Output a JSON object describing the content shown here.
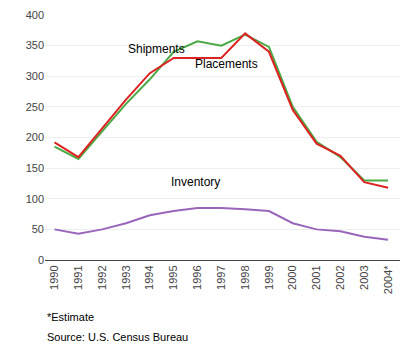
{
  "chart_data": {
    "type": "line",
    "x": [
      1990,
      1991,
      1992,
      1993,
      1994,
      1995,
      1996,
      1997,
      1998,
      1999,
      2000,
      2001,
      2002,
      2003,
      2004
    ],
    "series": [
      {
        "name": "Shipments",
        "color": "#4aaa44",
        "values": [
          185,
          165,
          210,
          255,
          295,
          340,
          357,
          350,
          368,
          348,
          250,
          193,
          168,
          130,
          130
        ]
      },
      {
        "name": "Placements",
        "color": "#dd2222",
        "values": [
          192,
          168,
          215,
          262,
          305,
          330,
          330,
          330,
          370,
          340,
          245,
          190,
          170,
          127,
          118
        ]
      },
      {
        "name": "Inventory",
        "color": "#9966bb",
        "values": [
          50,
          43,
          50,
          60,
          73,
          80,
          85,
          85,
          83,
          80,
          60,
          50,
          47,
          38,
          33
        ]
      }
    ],
    "xlim": [
      1989.6,
      2004.5
    ],
    "xticks": [
      1990,
      1991,
      1992,
      1993,
      1994,
      1995,
      1996,
      1997,
      1998,
      1999,
      2000,
      2001,
      2002,
      2003,
      {
        "value": 2004,
        "label": "2004*"
      }
    ],
    "ylim": [
      0,
      400
    ],
    "yticks": [
      0,
      50,
      100,
      150,
      200,
      250,
      300,
      350,
      400
    ],
    "grid": true,
    "annotations": [
      {
        "text": "Shipments",
        "x": 1993.0,
        "y": 330
      },
      {
        "text": "Placements",
        "x": 1995.8,
        "y": 305
      },
      {
        "text": "Inventory",
        "x": 1994.8,
        "y": 112
      }
    ],
    "footnotes": [
      "*Estimate",
      "Source: U.S. Census Bureau"
    ]
  }
}
